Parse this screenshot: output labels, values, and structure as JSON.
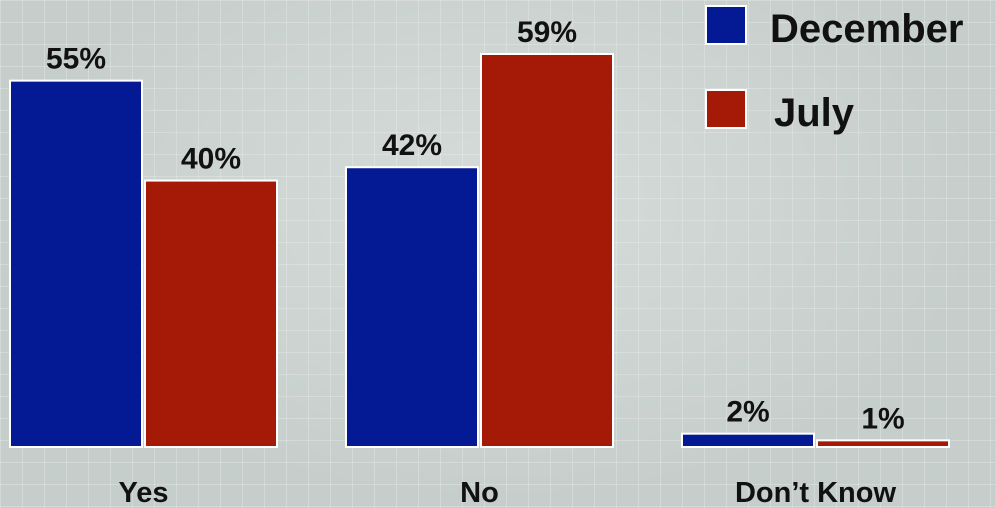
{
  "chart_data": {
    "type": "bar",
    "categories": [
      "Yes",
      "No",
      "Don’t Know"
    ],
    "series": [
      {
        "name": "December",
        "color": "#041a94",
        "values": [
          55,
          42,
          2
        ],
        "labels": [
          "55%",
          "42%",
          "2%"
        ]
      },
      {
        "name": "July",
        "color": "#a51a07",
        "values": [
          40,
          59,
          1
        ],
        "labels": [
          "40%",
          "59%",
          "1%"
        ]
      }
    ],
    "ylim": [
      0,
      60
    ],
    "grid": true,
    "legend": "top-right",
    "title": "",
    "xlabel": "",
    "ylabel": ""
  }
}
